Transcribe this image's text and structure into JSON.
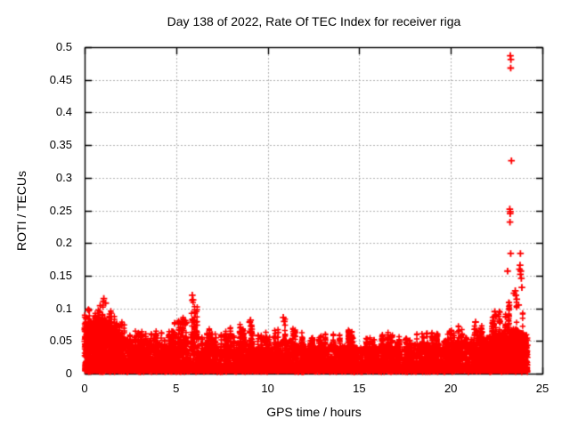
{
  "chart_data": {
    "type": "scatter",
    "title": "Day 138 of 2022, Rate Of TEC Index for receiver riga",
    "xlabel": "GPS time / hours",
    "ylabel": "ROTI / TECUs",
    "xlim": [
      0,
      25
    ],
    "ylim": [
      0,
      0.5
    ],
    "xtick_values": [
      0,
      5,
      10,
      15,
      20,
      25
    ],
    "xtick_labels": [
      "0",
      "5",
      "10",
      "15",
      "20",
      "25"
    ],
    "ytick_values": [
      0,
      0.05,
      0.1,
      0.15,
      0.2,
      0.25,
      0.3,
      0.35,
      0.4,
      0.45,
      0.5
    ],
    "ytick_labels": [
      "0",
      "0.05",
      "0.1",
      "0.15",
      "0.2",
      "0.25",
      "0.3",
      "0.35",
      "0.4",
      "0.45",
      "0.5"
    ],
    "grid": {
      "show": true,
      "style": "dashed",
      "color": "#b4b4b4"
    },
    "legend": {
      "show": false
    },
    "marker": {
      "shape": "plus",
      "color": "#ff0000",
      "size": 7
    },
    "series": [
      {
        "name": "ROTI",
        "description": "Dense band of 30-s ROTI samples covering 0-24 h GPS time; bulk 0.005-0.05 TECU with narrow spike columns; strong disturbance burst near 23.2-23.9 h reaching 0.49 TECU",
        "x_start": 0,
        "x_end": 24.2,
        "floor": 0.004,
        "envelope_x": [
          0,
          0.5,
          1,
          1.5,
          2,
          2.5,
          3,
          3.5,
          4,
          4.5,
          5,
          5.5,
          6,
          6.5,
          7,
          7.5,
          8,
          8.5,
          9,
          9.5,
          10,
          10.5,
          11,
          11.5,
          12,
          12.5,
          13,
          13.5,
          14,
          14.5,
          15,
          15.5,
          16,
          16.5,
          17,
          17.5,
          18,
          18.5,
          19,
          19.5,
          20,
          20.5,
          21,
          21.5,
          22,
          22.5,
          23,
          23.5,
          24
        ],
        "envelope_dense_top": [
          0.075,
          0.085,
          0.09,
          0.072,
          0.06,
          0.052,
          0.05,
          0.05,
          0.048,
          0.045,
          0.05,
          0.056,
          0.066,
          0.05,
          0.045,
          0.042,
          0.046,
          0.05,
          0.048,
          0.042,
          0.042,
          0.046,
          0.055,
          0.046,
          0.042,
          0.04,
          0.042,
          0.046,
          0.042,
          0.046,
          0.04,
          0.04,
          0.042,
          0.046,
          0.042,
          0.042,
          0.046,
          0.046,
          0.05,
          0.046,
          0.046,
          0.05,
          0.052,
          0.055,
          0.055,
          0.06,
          0.066,
          0.07,
          0.06
        ],
        "envelope_spike_top": [
          0.095,
          0.105,
          0.115,
          0.095,
          0.08,
          0.07,
          0.068,
          0.072,
          0.065,
          0.06,
          0.082,
          0.092,
          0.12,
          0.075,
          0.065,
          0.06,
          0.072,
          0.076,
          0.083,
          0.062,
          0.065,
          0.07,
          0.086,
          0.072,
          0.06,
          0.055,
          0.06,
          0.066,
          0.06,
          0.07,
          0.058,
          0.055,
          0.06,
          0.066,
          0.056,
          0.06,
          0.066,
          0.062,
          0.066,
          0.06,
          0.066,
          0.076,
          0.085,
          0.076,
          0.082,
          0.092,
          0.105,
          0.12,
          0.09
        ],
        "density_model": {
          "base_count": 6200,
          "base_pow": 2.2,
          "floor_count": 1100,
          "early_count": 700,
          "late_count": 900,
          "spike_cols_min": 2,
          "spike_cols_max": 4,
          "spike_pts_min": 8,
          "spike_pts_max": 20
        },
        "outliers": [
          [
            0.85,
            0.104
          ],
          [
            1.05,
            0.115
          ],
          [
            1.15,
            0.108
          ],
          [
            5.88,
            0.12
          ],
          [
            5.92,
            0.113
          ],
          [
            9.02,
            0.079
          ],
          [
            9.06,
            0.082
          ],
          [
            10.85,
            0.086
          ],
          [
            10.9,
            0.08
          ],
          [
            21.35,
            0.079
          ],
          [
            22.4,
            0.095
          ],
          [
            22.45,
            0.088
          ],
          [
            23.1,
            0.157
          ],
          [
            23.22,
            0.252
          ],
          [
            23.23,
            0.232
          ],
          [
            23.24,
            0.245
          ],
          [
            23.25,
            0.248
          ],
          [
            23.25,
            0.487
          ],
          [
            23.27,
            0.468
          ],
          [
            23.28,
            0.481
          ],
          [
            23.27,
            0.184
          ],
          [
            23.31,
            0.326
          ],
          [
            23.45,
            0.123
          ],
          [
            23.52,
            0.127
          ],
          [
            23.55,
            0.12
          ],
          [
            23.6,
            0.114
          ],
          [
            23.7,
            0.105
          ],
          [
            23.75,
            0.16
          ],
          [
            23.78,
            0.166
          ],
          [
            23.8,
            0.184
          ],
          [
            23.8,
            0.152
          ],
          [
            23.82,
            0.157
          ],
          [
            23.85,
            0.146
          ],
          [
            23.88,
            0.132
          ]
        ]
      }
    ]
  },
  "page": {
    "background": "#ffffff",
    "text_color": "#000000"
  }
}
